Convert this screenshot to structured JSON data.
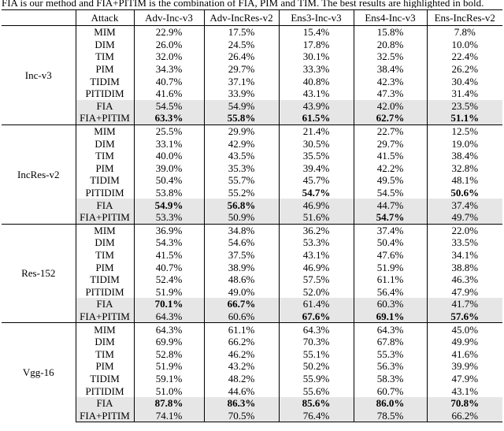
{
  "caption": "FIA is our method and FIA+PITIM is the combination of FIA, PIM and TIM. The best results are highlighted in bold.",
  "table": {
    "header": [
      "Attack",
      "Adv-Inc-v3",
      "Adv-IncRes-v2",
      "Ens3-Inc-v3",
      "Ens4-Inc-v3",
      "Ens-IncRes-v2"
    ],
    "groups": [
      {
        "model": "Inc-v3",
        "rows": [
          {
            "attack": "MIM",
            "values": [
              "22.9%",
              "17.5%",
              "15.4%",
              "15.8%",
              "7.8%"
            ]
          },
          {
            "attack": "DIM",
            "values": [
              "26.0%",
              "24.5%",
              "17.8%",
              "20.8%",
              "10.0%"
            ]
          },
          {
            "attack": "TIM",
            "values": [
              "32.0%",
              "26.4%",
              "30.1%",
              "32.5%",
              "22.4%"
            ]
          },
          {
            "attack": "PIM",
            "values": [
              "34.3%",
              "29.7%",
              "33.3%",
              "38.4%",
              "26.2%"
            ]
          },
          {
            "attack": "TIDIM",
            "values": [
              "40.7%",
              "37.1%",
              "40.8%",
              "42.3%",
              "30.4%"
            ]
          },
          {
            "attack": "PITIDIM",
            "values": [
              "41.6%",
              "33.9%",
              "43.1%",
              "47.3%",
              "31.4%"
            ]
          },
          {
            "attack": "FIA",
            "values": [
              "54.5%",
              "54.9%",
              "43.9%",
              "42.0%",
              "23.5%"
            ]
          },
          {
            "attack": "FIA+PITIM",
            "values": [
              {
                "text": "63.3%",
                "bold": true
              },
              {
                "text": "55.8%",
                "bold": true
              },
              {
                "text": "61.5%",
                "bold": true
              },
              {
                "text": "62.7%",
                "bold": true
              },
              {
                "text": "51.1%",
                "bold": true
              }
            ]
          }
        ]
      },
      {
        "model": "IncRes-v2",
        "rows": [
          {
            "attack": "MIM",
            "values": [
              "25.5%",
              "29.9%",
              "21.4%",
              "22.7%",
              "12.5%"
            ]
          },
          {
            "attack": "DIM",
            "values": [
              "33.1%",
              "42.9%",
              "30.5%",
              "29.7%",
              "19.0%"
            ]
          },
          {
            "attack": "TIM",
            "values": [
              "40.0%",
              "43.5%",
              "35.5%",
              "41.5%",
              "38.4%"
            ]
          },
          {
            "attack": "PIM",
            "values": [
              "39.0%",
              "35.3%",
              "39.4%",
              "42.2%",
              "32.8%"
            ]
          },
          {
            "attack": "TIDIM",
            "values": [
              "50.4%",
              "55.7%",
              "45.7%",
              "49.5%",
              "48.1%"
            ]
          },
          {
            "attack": "PITIDIM",
            "values": [
              "53.8%",
              "55.2%",
              {
                "text": "54.7%",
                "bold": true
              },
              "54.5%",
              {
                "text": "50.6%",
                "bold": true
              }
            ]
          },
          {
            "attack": "FIA",
            "values": [
              {
                "text": "54.9%",
                "bold": true
              },
              {
                "text": "56.8%",
                "bold": true
              },
              "46.9%",
              "44.7%",
              "37.4%"
            ]
          },
          {
            "attack": "FIA+PITIM",
            "values": [
              "53.3%",
              "50.9%",
              "51.6%",
              {
                "text": "54.7%",
                "bold": true
              },
              "49.7%"
            ]
          }
        ]
      },
      {
        "model": "Res-152",
        "rows": [
          {
            "attack": "MIM",
            "values": [
              "36.9%",
              "34.8%",
              "36.2%",
              "37.4%",
              "22.0%"
            ]
          },
          {
            "attack": "DIM",
            "values": [
              "54.3%",
              "54.6%",
              "53.3%",
              "50.4%",
              "33.5%"
            ]
          },
          {
            "attack": "TIM",
            "values": [
              "41.5%",
              "37.5%",
              "43.1%",
              "47.6%",
              "34.1%"
            ]
          },
          {
            "attack": "PIM",
            "values": [
              "40.7%",
              "38.9%",
              "46.9%",
              "51.9%",
              "38.8%"
            ]
          },
          {
            "attack": "TIDIM",
            "values": [
              "52.4%",
              "48.6%",
              "57.5%",
              "61.1%",
              "46.3%"
            ]
          },
          {
            "attack": "PITIDIM",
            "values": [
              "51.9%",
              "49.0%",
              "52.0%",
              "56.4%",
              "47.9%"
            ]
          },
          {
            "attack": "FIA",
            "values": [
              {
                "text": "70.1%",
                "bold": true
              },
              {
                "text": "66.7%",
                "bold": true
              },
              "61.4%",
              "60.3%",
              "41.7%"
            ]
          },
          {
            "attack": "FIA+PITIM",
            "values": [
              "64.3%",
              "60.6%",
              {
                "text": "67.6%",
                "bold": true
              },
              {
                "text": "69.1%",
                "bold": true
              },
              {
                "text": "57.6%",
                "bold": true
              }
            ]
          }
        ]
      },
      {
        "model": "Vgg-16",
        "rows": [
          {
            "attack": "MIM",
            "values": [
              "64.3%",
              "61.1%",
              "64.3%",
              "64.3%",
              "45.0%"
            ]
          },
          {
            "attack": "DIM",
            "values": [
              "69.9%",
              "66.2%",
              "70.3%",
              "67.8%",
              "49.9%"
            ]
          },
          {
            "attack": "TIM",
            "values": [
              "52.8%",
              "46.2%",
              "55.1%",
              "55.3%",
              "41.6%"
            ]
          },
          {
            "attack": "PIM",
            "values": [
              "51.9%",
              "43.2%",
              "50.2%",
              "56.3%",
              "39.9%"
            ]
          },
          {
            "attack": "TIDIM",
            "values": [
              "59.1%",
              "48.2%",
              "55.9%",
              "58.3%",
              "47.9%"
            ]
          },
          {
            "attack": "PITIDIM",
            "values": [
              "51.0%",
              "44.6%",
              "55.6%",
              "60.7%",
              "43.1%"
            ]
          },
          {
            "attack": "FIA",
            "values": [
              {
                "text": "87.8%",
                "bold": true
              },
              {
                "text": "86.3%",
                "bold": true
              },
              {
                "text": "85.6%",
                "bold": true
              },
              {
                "text": "86.0%",
                "bold": true
              },
              {
                "text": "70.8%",
                "bold": true
              }
            ]
          },
          {
            "attack": "FIA+PITIM",
            "values": [
              "74.1%",
              "70.5%",
              "76.4%",
              "78.5%",
              "66.2%"
            ]
          }
        ]
      }
    ]
  }
}
